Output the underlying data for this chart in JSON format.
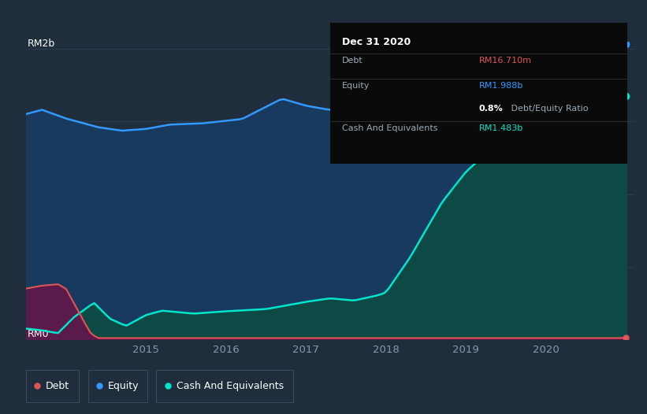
{
  "bg_color": "#1f2d3d",
  "plot_bg_color": "#1f2d3d",
  "grid_color": "#2e3f52",
  "tick_color": "#8899aa",
  "debt_color": "#e05555",
  "equity_color": "#3399ff",
  "cash_color": "#00e5cc",
  "equity_fill": "#173a5e",
  "cash_fill": "#0d4a45",
  "debt_fill_color": "#5a1a4a",
  "ylabel_top": "RM2b",
  "ylabel_bottom": "RM0",
  "xlabel_ticks": [
    2015,
    2016,
    2017,
    2018,
    2019,
    2020
  ],
  "title_text": "Dec 31 2020",
  "debt_label": "Debt",
  "equity_label": "Equity",
  "cash_label": "Cash And Equivalents",
  "debt_value": "RM16.710m",
  "equity_value": "RM1.988b",
  "ratio_bold": "0.8%",
  "ratio_rest": " Debt/Equity Ratio",
  "cash_value": "RM1.483b",
  "legend": [
    {
      "label": "Debt",
      "color": "#e05555"
    },
    {
      "label": "Equity",
      "color": "#3399ff"
    },
    {
      "label": "Cash And Equivalents",
      "color": "#00e5cc"
    }
  ]
}
